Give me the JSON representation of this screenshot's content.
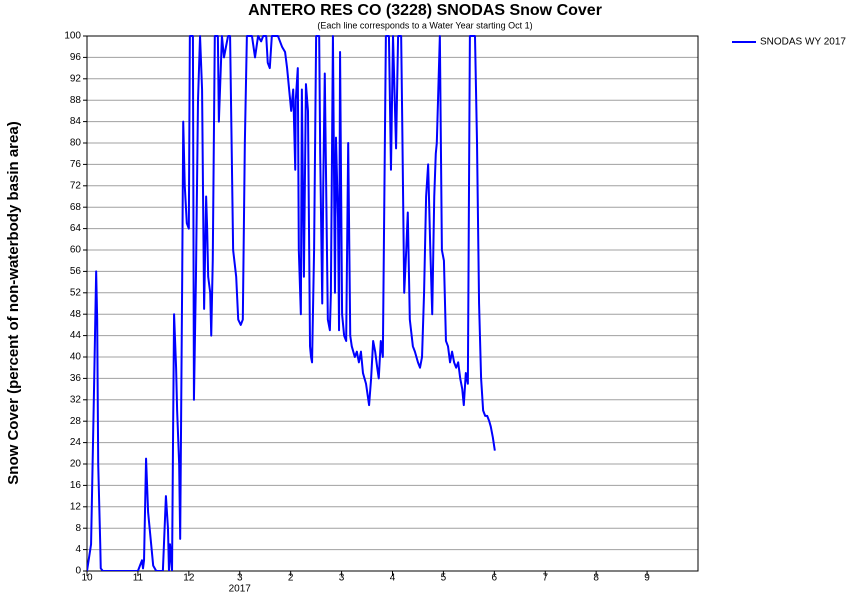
{
  "chart_data": {
    "type": "line",
    "title": "ANTERO RES CO (3228) SNODAS Snow Cover",
    "subtitle": "(Each line corresponds to a Water Year starting Oct 1)",
    "y_label": "Snow Cover (percent of non-waterbody basin area)",
    "x_annotation": "2017",
    "grid": true,
    "legend_position": "top-right",
    "xlim": [
      0,
      12
    ],
    "xticks": [
      {
        "value": 0,
        "label": "10"
      },
      {
        "value": 1,
        "label": "11"
      },
      {
        "value": 2,
        "label": "12"
      },
      3,
      {
        "value": 4,
        "label": "2"
      },
      {
        "value": 5,
        "label": "3"
      },
      {
        "value": 6,
        "label": "4"
      },
      {
        "value": 7,
        "label": "5"
      },
      {
        "value": 8,
        "label": "6"
      },
      {
        "value": 9,
        "label": "7"
      },
      {
        "value": 10,
        "label": "8"
      },
      {
        "value": 11,
        "label": "9"
      }
    ],
    "ylim": [
      0,
      100
    ],
    "yticks": [
      0,
      4,
      8,
      12,
      16,
      20,
      24,
      28,
      32,
      36,
      40,
      44,
      48,
      52,
      56,
      60,
      64,
      68,
      72,
      76,
      80,
      84,
      88,
      92,
      96,
      100
    ],
    "x": [
      0,
      0.08,
      0.14,
      0.18,
      0.2,
      0.22,
      0.26,
      0.27,
      0.31,
      1,
      1.04,
      1.08,
      1.1,
      1.12,
      1.16,
      1.2,
      1.24,
      1.3,
      1.36,
      1.49,
      1.55,
      1.59,
      1.61,
      1.63,
      1.67,
      1.69,
      1.71,
      1.75,
      1.77,
      1.81,
      1.83,
      1.87,
      1.89,
      1.92,
      1.96,
      2,
      2.02,
      2.08,
      2.1,
      2.14,
      2.18,
      2.22,
      2.26,
      2.3,
      2.34,
      2.36,
      2.38,
      2.42,
      2.44,
      2.47,
      2.51,
      2.57,
      2.59,
      2.65,
      2.69,
      2.73,
      2.77,
      2.81,
      2.87,
      2.93,
      2.97,
      3.02,
      3.06,
      3.1,
      3.14,
      3.24,
      3.3,
      3.36,
      3.42,
      3.46,
      3.52,
      3.55,
      3.59,
      3.63,
      3.75,
      3.83,
      3.89,
      3.93,
      3.97,
      4.01,
      4.05,
      4.09,
      4.1,
      4.14,
      4.16,
      4.2,
      4.22,
      4.26,
      4.3,
      4.34,
      4.38,
      4.4,
      4.42,
      4.46,
      4.5,
      4.56,
      4.58,
      4.62,
      4.64,
      4.67,
      4.71,
      4.73,
      4.77,
      4.79,
      4.83,
      4.87,
      4.89,
      4.93,
      4.95,
      4.97,
      5.01,
      5.05,
      5.09,
      5.13,
      5.17,
      5.2,
      5.26,
      5.3,
      5.34,
      5.38,
      5.42,
      5.48,
      5.54,
      5.58,
      5.62,
      5.66,
      5.7,
      5.73,
      5.77,
      5.81,
      5.87,
      5.93,
      5.97,
      6.01,
      6.07,
      6.11,
      6.17,
      6.19,
      6.23,
      6.27,
      6.3,
      6.34,
      6.4,
      6.44,
      6.5,
      6.54,
      6.58,
      6.62,
      6.66,
      6.7,
      6.74,
      6.78,
      6.82,
      6.85,
      6.87,
      6.93,
      6.97,
      7.01,
      7.05,
      7.09,
      7.13,
      7.17,
      7.21,
      7.25,
      7.29,
      7.33,
      7.37,
      7.4,
      7.44,
      7.48,
      7.52,
      7.62,
      7.66,
      7.7,
      7.74,
      7.78,
      7.82,
      7.86,
      7.9,
      7.93,
      7.97,
      8.01
    ],
    "series": [
      {
        "name": "SNODAS WY 2017",
        "color": "#0000ff",
        "values": [
          0,
          5,
          35,
          56,
          47,
          20,
          5,
          0.5,
          0,
          0,
          1,
          2,
          0.5,
          2,
          21,
          11,
          7,
          1,
          0,
          0,
          14,
          8,
          0,
          5,
          0,
          25,
          48,
          38,
          30,
          20,
          6,
          55,
          84,
          72,
          65,
          64,
          100,
          100,
          32,
          55,
          88,
          100,
          90,
          49,
          70,
          64,
          55,
          52,
          44,
          58,
          100,
          100,
          84,
          100,
          96,
          98,
          100,
          100,
          60,
          55,
          47,
          46,
          47,
          80,
          100,
          100,
          96,
          100,
          99,
          100,
          100,
          95,
          94,
          100,
          100,
          98,
          97,
          94,
          90,
          86,
          90,
          75,
          88,
          94,
          60,
          48,
          90,
          55,
          91,
          86,
          42,
          40,
          39,
          60,
          100,
          100,
          78,
          50,
          72,
          93,
          62,
          47,
          45,
          52,
          100,
          52,
          81,
          66,
          45,
          97,
          48,
          44,
          43,
          80,
          44,
          42,
          40,
          41,
          39,
          41,
          37,
          35,
          31,
          36,
          43,
          41,
          38,
          36,
          43,
          40,
          100,
          100,
          75,
          100,
          79,
          100,
          100,
          85,
          52,
          60,
          67,
          47,
          42,
          41,
          39,
          38,
          40,
          52,
          70,
          76,
          61,
          48,
          70,
          78,
          80,
          100,
          60,
          58,
          43,
          42,
          39,
          41,
          39,
          38,
          39,
          36,
          34,
          31,
          37,
          35,
          100,
          100,
          80,
          50,
          36,
          30,
          29,
          29,
          28,
          27,
          25,
          22.5
        ]
      }
    ]
  }
}
